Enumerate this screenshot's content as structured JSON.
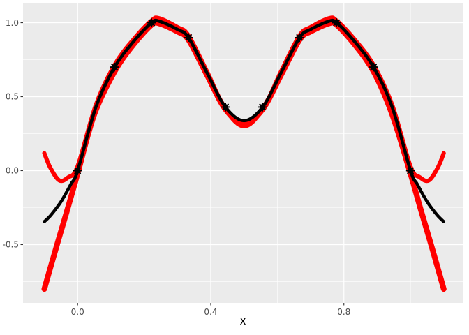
{
  "chart_data": {
    "type": "line",
    "title": "",
    "xlabel": "X",
    "ylabel": "",
    "grid": true,
    "legend_position": "none",
    "xlim": [
      -0.164,
      1.157
    ],
    "ylim": [
      -0.894,
      1.13
    ],
    "x_axis": {
      "major_ticks": [
        0.0,
        0.4,
        0.8
      ],
      "major_labels": [
        "0.0",
        "0.4",
        "0.8"
      ],
      "minor_gridlines": [
        0.2,
        0.6,
        1.0
      ]
    },
    "y_axis": {
      "major_ticks": [
        1.0,
        0.5,
        0.0,
        -0.5
      ],
      "major_labels": [
        "1.0",
        "0.5",
        "0.0",
        "-0.5"
      ],
      "minor_gridlines": [
        0.75,
        0.25,
        -0.25,
        -0.75
      ]
    },
    "colors": {
      "panel_background": "#ebebeb",
      "gridline": "#ffffff",
      "tick_text": "#4d4d4d",
      "tick_mark": "#333333",
      "fit_line": "#ff0000",
      "true_line": "#000000",
      "point": "#000000"
    },
    "series": [
      {
        "name": "red-fit-diverging-down",
        "color": "#ff0000",
        "stroke_width": 8,
        "xy": [
          [
            -0.1,
            -0.8
          ],
          [
            -0.067,
            -0.54
          ],
          [
            -0.033,
            -0.28
          ],
          [
            0.0,
            -0.02
          ],
          [
            0.05,
            0.38
          ],
          [
            0.111,
            0.67
          ],
          [
            0.167,
            0.85
          ],
          [
            0.222,
            0.985
          ],
          [
            0.245,
            0.995
          ],
          [
            0.3,
            0.94
          ],
          [
            0.333,
            0.885
          ],
          [
            0.389,
            0.645
          ],
          [
            0.444,
            0.415
          ],
          [
            0.5,
            0.32
          ],
          [
            0.556,
            0.415
          ],
          [
            0.611,
            0.645
          ],
          [
            0.667,
            0.885
          ],
          [
            0.7,
            0.94
          ],
          [
            0.755,
            0.995
          ],
          [
            0.778,
            0.985
          ],
          [
            0.833,
            0.85
          ],
          [
            0.889,
            0.67
          ],
          [
            0.945,
            0.38
          ],
          [
            1.0,
            -0.02
          ],
          [
            1.033,
            -0.28
          ],
          [
            1.067,
            -0.54
          ],
          [
            1.1,
            -0.8
          ]
        ]
      },
      {
        "name": "red-fit-diverging-up",
        "color": "#ff0000",
        "stroke_width": 6,
        "xy": [
          [
            -0.1,
            0.118
          ],
          [
            -0.082,
            0.02
          ],
          [
            -0.055,
            -0.066
          ],
          [
            -0.028,
            -0.045
          ],
          [
            0.0,
            0.03
          ],
          [
            0.055,
            0.445
          ],
          [
            0.111,
            0.715
          ],
          [
            0.167,
            0.885
          ],
          [
            0.222,
            1.015
          ],
          [
            0.245,
            1.03
          ],
          [
            0.3,
            0.97
          ],
          [
            0.333,
            0.915
          ],
          [
            0.389,
            0.67
          ],
          [
            0.444,
            0.415
          ],
          [
            0.5,
            0.3
          ],
          [
            0.556,
            0.415
          ],
          [
            0.611,
            0.67
          ],
          [
            0.667,
            0.915
          ],
          [
            0.7,
            0.97
          ],
          [
            0.755,
            1.03
          ],
          [
            0.778,
            1.015
          ],
          [
            0.833,
            0.885
          ],
          [
            0.889,
            0.715
          ],
          [
            0.945,
            0.445
          ],
          [
            1.0,
            0.03
          ],
          [
            1.028,
            -0.045
          ],
          [
            1.055,
            -0.066
          ],
          [
            1.082,
            0.02
          ],
          [
            1.1,
            0.118
          ]
        ]
      },
      {
        "name": "true-function-black",
        "color": "#000000",
        "stroke_width": 4.5,
        "xy": [
          [
            -0.1,
            -0.345
          ],
          [
            -0.08,
            -0.3
          ],
          [
            -0.05,
            -0.21
          ],
          [
            -0.02,
            -0.09
          ],
          [
            0.0,
            0.0
          ],
          [
            0.055,
            0.43
          ],
          [
            0.111,
            0.7
          ],
          [
            0.167,
            0.87
          ],
          [
            0.222,
            1.0
          ],
          [
            0.245,
            1.01
          ],
          [
            0.3,
            0.955
          ],
          [
            0.333,
            0.9
          ],
          [
            0.389,
            0.66
          ],
          [
            0.444,
            0.43
          ],
          [
            0.5,
            0.338
          ],
          [
            0.556,
            0.43
          ],
          [
            0.611,
            0.66
          ],
          [
            0.667,
            0.9
          ],
          [
            0.7,
            0.955
          ],
          [
            0.755,
            1.01
          ],
          [
            0.778,
            1.0
          ],
          [
            0.833,
            0.87
          ],
          [
            0.889,
            0.7
          ],
          [
            0.945,
            0.43
          ],
          [
            1.0,
            0.0
          ],
          [
            1.02,
            -0.09
          ],
          [
            1.05,
            -0.21
          ],
          [
            1.08,
            -0.3
          ],
          [
            1.1,
            -0.345
          ]
        ]
      }
    ],
    "points": {
      "name": "training-data-points",
      "marker": "asterisk-over-solid-circle",
      "color": "#000000",
      "x": [
        0.0,
        0.1111,
        0.2222,
        0.3333,
        0.4444,
        0.5556,
        0.6667,
        0.7778,
        0.8889,
        1.0
      ],
      "y": [
        0.0,
        0.7,
        1.0,
        0.9,
        0.43,
        0.43,
        0.9,
        1.0,
        0.7,
        0.0
      ]
    }
  }
}
